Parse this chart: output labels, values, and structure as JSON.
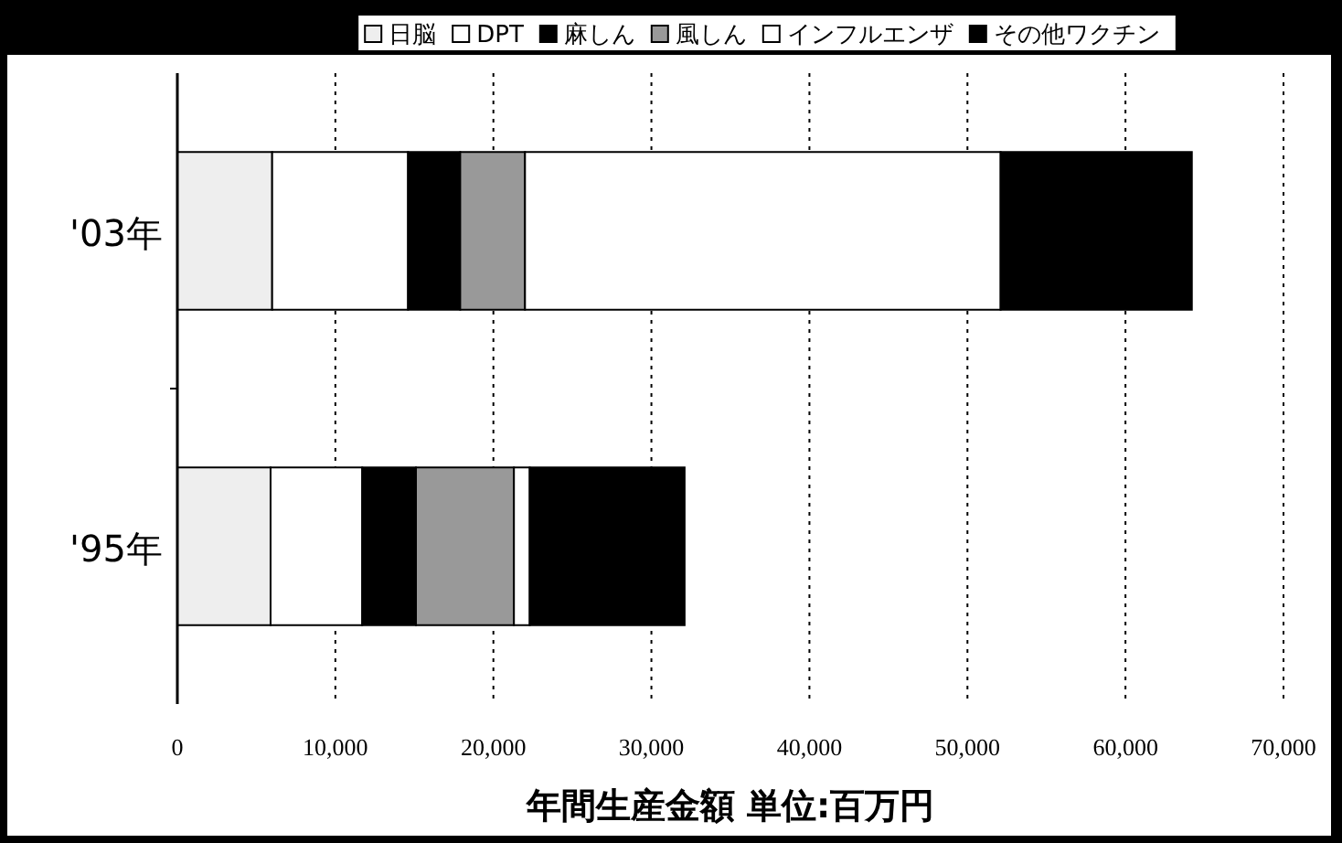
{
  "chart_data": {
    "type": "bar",
    "orientation": "horizontal",
    "stacked": true,
    "xlabel": "年間生産金額  単位:百万円",
    "categories": [
      "'03年",
      "'95年"
    ],
    "series": [
      {
        "name": "日脳",
        "color": "#eeeeee",
        "values": [
          6000,
          5900
        ]
      },
      {
        "name": "DPT",
        "color": "#ffffff",
        "values": [
          8600,
          5800
        ]
      },
      {
        "name": "麻しん",
        "color": "#000000",
        "values": [
          3300,
          3400
        ]
      },
      {
        "name": "風しん",
        "color": "#999999",
        "values": [
          4100,
          6200
        ]
      },
      {
        "name": "インフルエンザ",
        "color": "#ffffff",
        "values": [
          30100,
          1000
        ]
      },
      {
        "name": "その他ワクチン",
        "color": "#000000",
        "values": [
          12100,
          9800
        ]
      }
    ],
    "xlim": [
      0,
      70000
    ],
    "xticks": [
      0,
      {
        "value": 10000,
        "label": "10,000"
      },
      {
        "value": 20000,
        "label": "20,000"
      },
      {
        "value": 30000,
        "label": "30,000"
      },
      {
        "value": 40000,
        "label": "40,000"
      },
      {
        "value": 50000,
        "label": "50,000"
      },
      {
        "value": 60000,
        "label": "60,000"
      },
      {
        "value": 70000,
        "label": "70,000"
      }
    ],
    "grid": "x",
    "legend": "top"
  }
}
